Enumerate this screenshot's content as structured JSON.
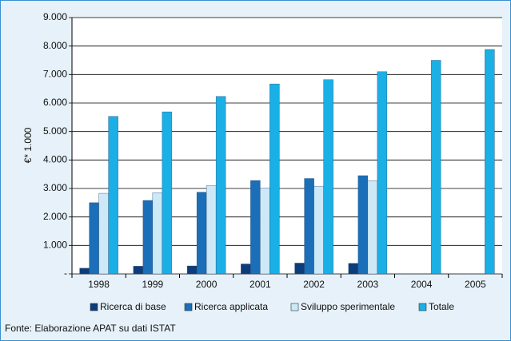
{
  "chart_data": {
    "type": "bar",
    "ylabel": "€* 1.000",
    "source": "Fonte: Elaborazione APAT su dati ISTAT",
    "categories": [
      "1998",
      "1999",
      "2000",
      "2001",
      "2002",
      "2003",
      "2004",
      "2005"
    ],
    "series": [
      {
        "name": "Ricerca di base",
        "color": "#0d3c7a",
        "values": [
          200,
          270,
          280,
          350,
          380,
          370,
          null,
          null
        ]
      },
      {
        "name": "Ricerca applicata",
        "color": "#1a6fb8",
        "values": [
          2500,
          2580,
          2870,
          3280,
          3350,
          3450,
          null,
          null
        ]
      },
      {
        "name": "Sviluppo sperimentale",
        "color": "#cde9f7",
        "values": [
          2830,
          2850,
          3100,
          3020,
          3080,
          3270,
          null,
          null
        ]
      },
      {
        "name": "Totale",
        "color": "#1ab0e6",
        "values": [
          5530,
          5690,
          6230,
          6670,
          6820,
          7100,
          7500,
          7880
        ]
      }
    ],
    "ylim": [
      0,
      9000
    ],
    "yticks": [
      {
        "value": 0,
        "label": "-"
      },
      {
        "value": 1000,
        "label": "1.000"
      },
      {
        "value": 2000,
        "label": "2.000"
      },
      {
        "value": 3000,
        "label": "3.000"
      },
      {
        "value": 4000,
        "label": "4.000"
      },
      {
        "value": 5000,
        "label": "5.000"
      },
      {
        "value": 6000,
        "label": "6.000"
      },
      {
        "value": 7000,
        "label": "7.000"
      },
      {
        "value": 8000,
        "label": "8.000"
      },
      {
        "value": 9000,
        "label": "9.000"
      }
    ],
    "grid": true,
    "legend": "bottom"
  }
}
